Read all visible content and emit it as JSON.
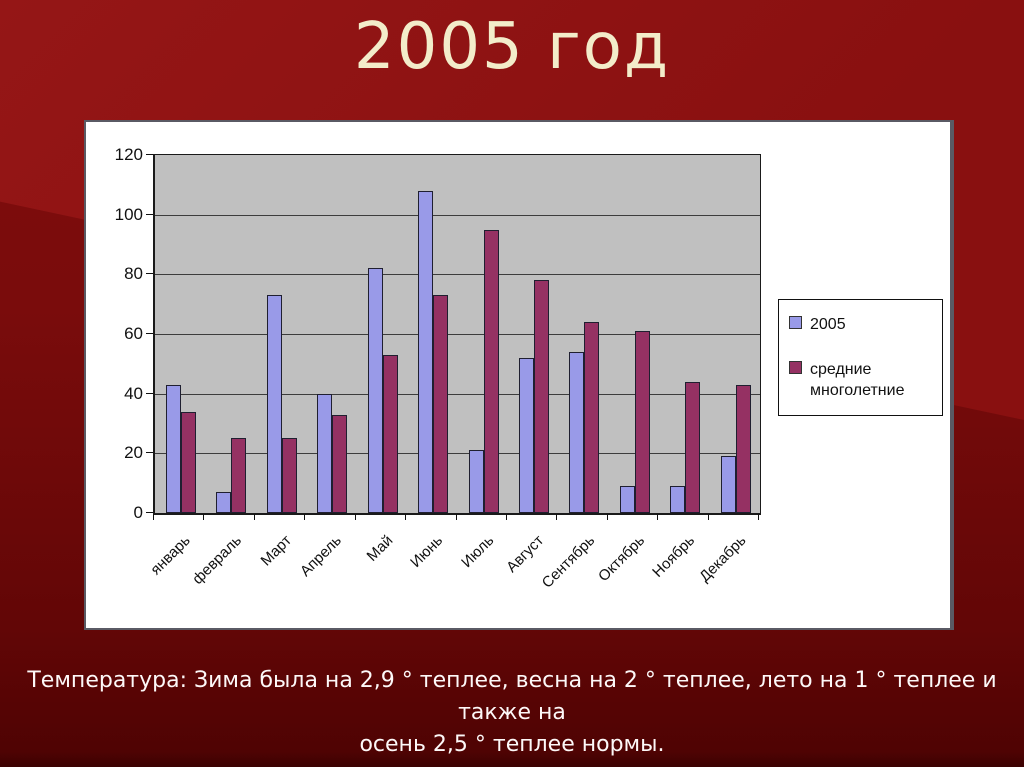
{
  "slide": {
    "title": "2005 год",
    "caption_lines": [
      "Температура: Зима была на 2,9 ° теплее, весна на 2 ° теплее, лето на 1 ° теплее и",
      "также на",
      "осень 2,5 ° теплее нормы."
    ]
  },
  "chart_data": {
    "type": "bar",
    "categories": [
      "январь",
      "февраль",
      "Март",
      "Апрель",
      "Май",
      "Июнь",
      "Июль",
      "Август",
      "Сентябрь",
      "Октябрь",
      "Ноябрь",
      "Декабрь"
    ],
    "series": [
      {
        "name": "2005",
        "color": "#999ae8",
        "values": [
          43,
          7,
          73,
          40,
          82,
          108,
          21,
          52,
          54,
          9,
          9,
          19
        ]
      },
      {
        "name": "средние многолетние",
        "color": "#953163",
        "values": [
          34,
          25,
          25,
          33,
          53,
          73,
          95,
          78,
          64,
          61,
          44,
          43
        ]
      }
    ],
    "title": "",
    "xlabel": "",
    "ylabel": "",
    "ylim": [
      0,
      120
    ],
    "yticks": [
      0,
      20,
      40,
      60,
      80,
      100,
      120
    ],
    "grid": true,
    "legend_position": "right",
    "plot_bg": "#c0c0c0"
  },
  "colors": {
    "slide_bg_top": "#951616",
    "slide_bg_mid": "#7a0c0c",
    "slide_bg_bottom": "#3c0202",
    "title_text": "#f3ecca",
    "caption_text": "#fdf8f8",
    "chart_frame_bg": "#ffffff",
    "plot_bg": "#c0c0c0",
    "series_2005_fill": "#999ae8",
    "series_avg_fill": "#953163"
  }
}
